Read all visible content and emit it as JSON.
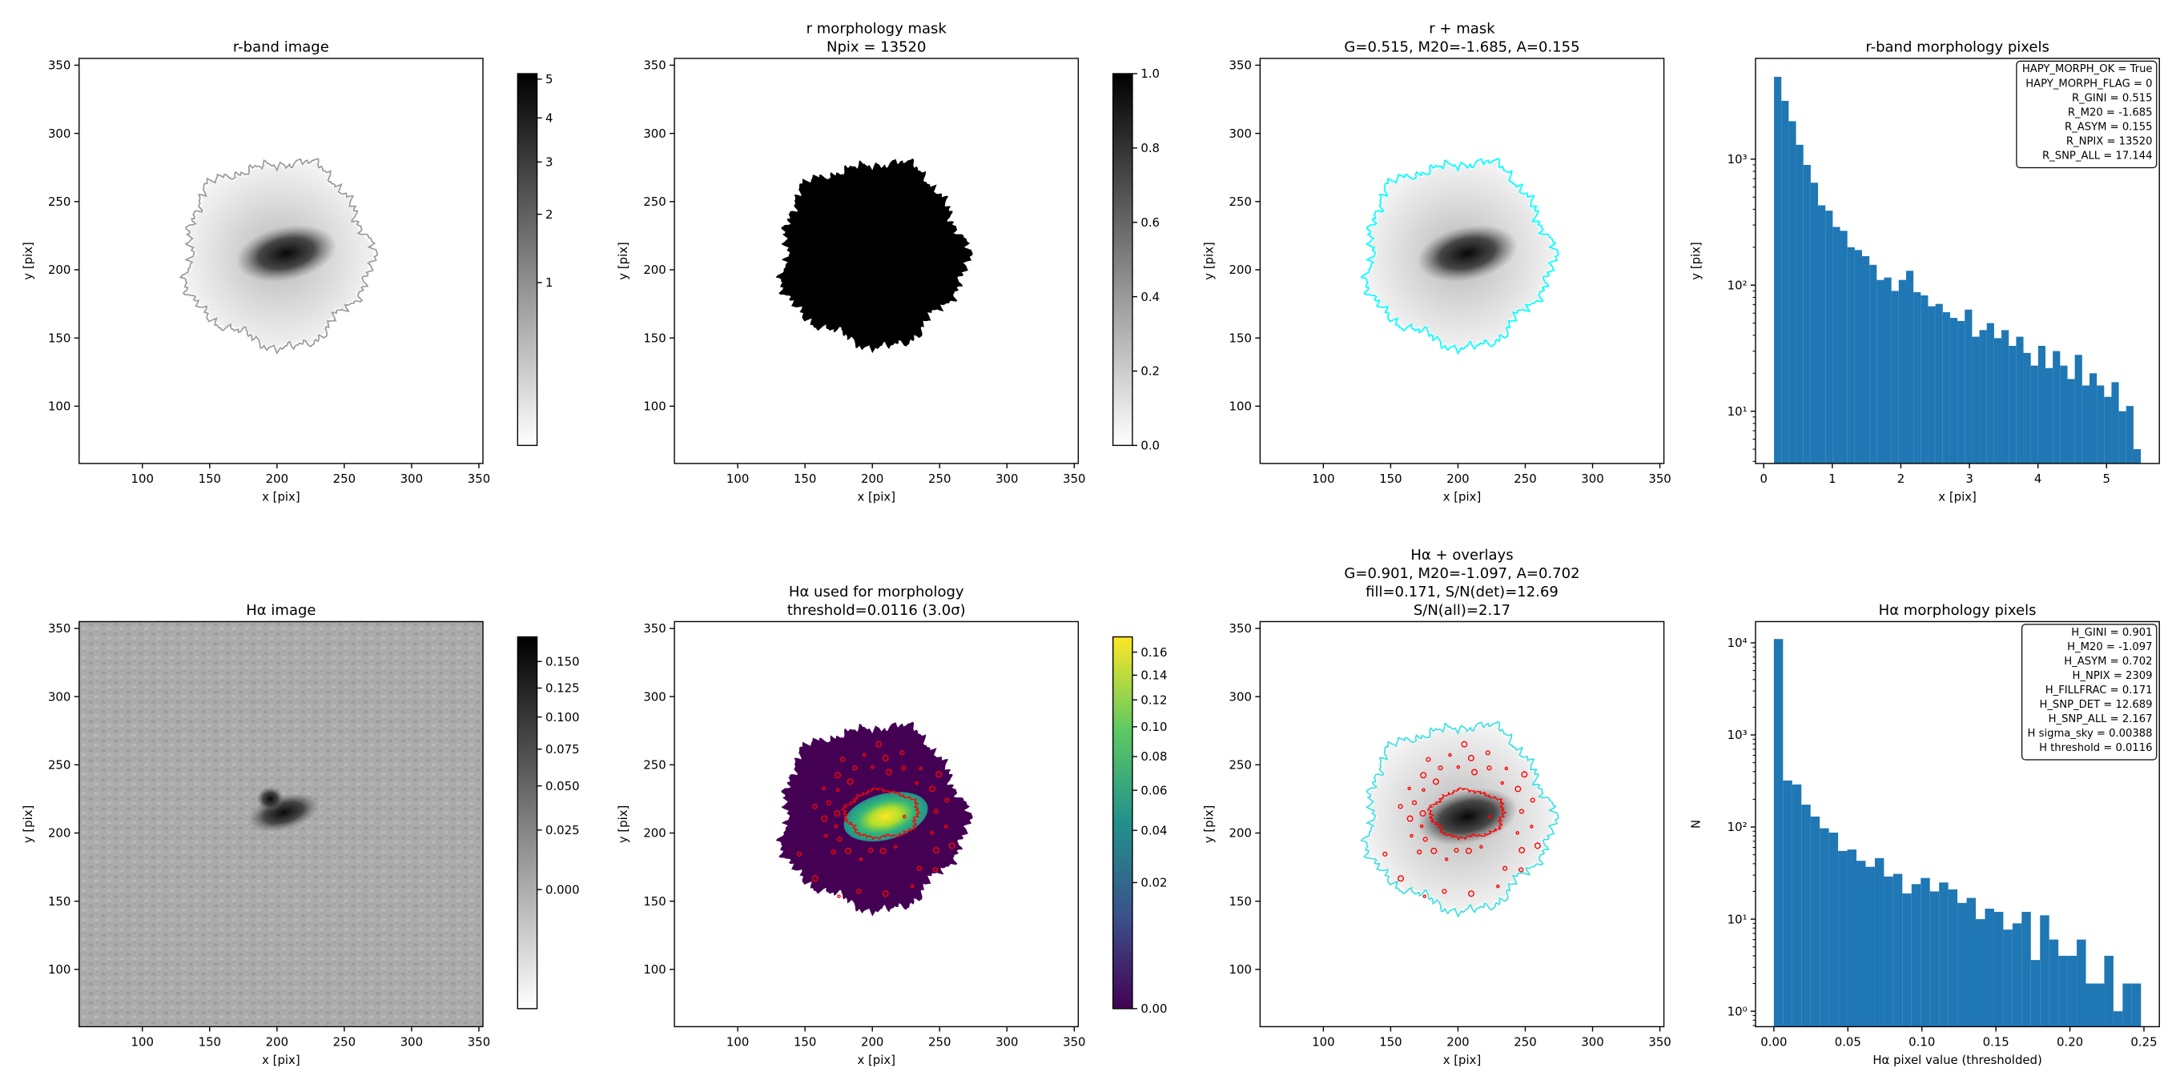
{
  "chart_data": [
    {
      "type": "image",
      "title": [
        "r-band image"
      ],
      "xlabel": "x [pix]",
      "ylabel": "y [pix]",
      "xlim": [
        53,
        353
      ],
      "ylim": [
        58,
        355
      ],
      "xticks": [
        100,
        150,
        200,
        250,
        300,
        350
      ],
      "yticks": [
        100,
        150,
        200,
        250,
        300,
        350
      ],
      "colormap": "gray_r",
      "contour_colors": [
        "#9a9a9a"
      ],
      "colorbar": {
        "scale": "sqrt",
        "clim": [
          0.015,
          5.15
        ],
        "ticks": [
          1,
          2,
          3,
          4,
          5
        ]
      }
    },
    {
      "type": "image",
      "title": [
        "r morphology mask",
        "Npix = 13520"
      ],
      "xlabel": "x [pix]",
      "ylabel": "y [pix]",
      "xlim": [
        53,
        353
      ],
      "ylim": [
        58,
        355
      ],
      "xticks": [
        100,
        150,
        200,
        250,
        300,
        350
      ],
      "yticks": [
        100,
        150,
        200,
        250,
        300,
        350
      ],
      "colormap": "gray_r",
      "contour_colors": [],
      "colorbar": {
        "scale": "linear",
        "clim": [
          0,
          1
        ],
        "ticks": [
          {
            "value": 0,
            "label": "0.0"
          },
          {
            "value": 0.2,
            "label": "0.2"
          },
          {
            "value": 0.4,
            "label": "0.4"
          },
          {
            "value": 0.6,
            "label": "0.6"
          },
          {
            "value": 0.8,
            "label": "0.8"
          },
          {
            "value": 1,
            "label": "1.0"
          }
        ]
      }
    },
    {
      "type": "image",
      "title": [
        "r + mask",
        "G=0.515, M20=-1.685, A=0.155"
      ],
      "xlabel": "x [pix]",
      "ylabel": "y [pix]",
      "xlim": [
        53,
        353
      ],
      "ylim": [
        58,
        355
      ],
      "xticks": [
        100,
        150,
        200,
        250,
        300,
        350
      ],
      "yticks": [
        100,
        150,
        200,
        250,
        300,
        350
      ],
      "colormap": "gray_r",
      "contour_colors": [
        "#00ffff"
      ]
    },
    {
      "type": "histogram",
      "title": [
        "r-band morphology pixels"
      ],
      "xlabel": "x [pix]",
      "ylabel": "y [pix]",
      "color": "#1f77b4",
      "ylog": true,
      "xlim": [
        -0.12,
        5.77
      ],
      "ylim": [
        3.85,
        6300
      ],
      "xticks": [
        0,
        1,
        2,
        3,
        4,
        5
      ],
      "yticks": [
        {
          "value": 10,
          "label": "10¹"
        },
        {
          "value": 100,
          "label": "10²"
        },
        {
          "value": 1000,
          "label": "10³"
        }
      ],
      "bins": [
        0.15,
        0.257,
        0.364,
        0.471,
        0.578,
        0.685,
        0.792,
        0.899,
        1.006,
        1.113,
        1.22,
        1.327,
        1.434,
        1.541,
        1.648,
        1.755,
        1.862,
        1.969,
        2.076,
        2.183,
        2.29,
        2.397,
        2.504,
        2.611,
        2.718,
        2.825,
        2.932,
        3.039,
        3.146,
        3.253,
        3.36,
        3.467,
        3.574,
        3.681,
        3.788,
        3.895,
        4.002,
        4.109,
        4.216,
        4.323,
        4.43,
        4.537,
        4.644,
        4.751,
        4.858,
        4.965,
        5.072,
        5.179,
        5.286,
        5.393,
        5.5
      ],
      "values": [
        4500,
        2900,
        2000,
        1300,
        900,
        650,
        430,
        390,
        290,
        270,
        200,
        190,
        170,
        145,
        110,
        115,
        90,
        110,
        130,
        88,
        83,
        68,
        71,
        61,
        55,
        52,
        64,
        39,
        44,
        50,
        38,
        44,
        33,
        39,
        29,
        23,
        33,
        22,
        30,
        23,
        18,
        28,
        16,
        20,
        16,
        13,
        17,
        10,
        11,
        5
      ],
      "annotations": [
        "HAPY_MORPH_OK = True",
        "HAPY_MORPH_FLAG = 0",
        "R_GINI = 0.515",
        "R_M20 = -1.685",
        "R_ASYM = 0.155",
        "R_NPIX = 13520",
        "R_SNP_ALL = 17.144"
      ]
    },
    {
      "type": "image",
      "title": [
        "Hα image"
      ],
      "xlabel": "x [pix]",
      "ylabel": "y [pix]",
      "xlim": [
        53,
        353
      ],
      "ylim": [
        58,
        355
      ],
      "xticks": [
        100,
        150,
        200,
        250,
        300,
        350
      ],
      "yticks": [
        100,
        150,
        200,
        250,
        300,
        350
      ],
      "colormap": "gray_r",
      "contour_colors": [],
      "colorbar": {
        "scale": "sqrt",
        "clim": [
          -0.02,
          0.175
        ],
        "ticks": [
          {
            "value": 0,
            "label": "0.000"
          },
          {
            "value": 0.025,
            "label": "0.025"
          },
          {
            "value": 0.05,
            "label": "0.050"
          },
          {
            "value": 0.075,
            "label": "0.075"
          },
          {
            "value": 0.1,
            "label": "0.100"
          },
          {
            "value": 0.125,
            "label": "0.125"
          },
          {
            "value": 0.15,
            "label": "0.150"
          }
        ]
      }
    },
    {
      "type": "image",
      "title": [
        "Hα used for morphology",
        "threshold=0.0116 (3.0σ)"
      ],
      "xlabel": "x [pix]",
      "ylabel": "y [pix]",
      "xlim": [
        53,
        353
      ],
      "ylim": [
        58,
        355
      ],
      "xticks": [
        100,
        150,
        200,
        250,
        300,
        350
      ],
      "yticks": [
        100,
        150,
        200,
        250,
        300,
        350
      ],
      "colormap": "viridis",
      "contour_colors": [
        "#ff0000"
      ],
      "colorbar": {
        "scale": "sqrt",
        "clim": [
          0,
          0.174
        ],
        "ticks": [
          {
            "value": 0,
            "label": "0.00"
          },
          {
            "value": 0.02,
            "label": "0.02"
          },
          {
            "value": 0.04,
            "label": "0.04"
          },
          {
            "value": 0.06,
            "label": "0.06"
          },
          {
            "value": 0.08,
            "label": "0.08"
          },
          {
            "value": 0.1,
            "label": "0.10"
          },
          {
            "value": 0.12,
            "label": "0.12"
          },
          {
            "value": 0.14,
            "label": "0.14"
          },
          {
            "value": 0.16,
            "label": "0.16"
          }
        ]
      }
    },
    {
      "type": "image",
      "title": [
        "Hα + overlays",
        "G=0.901, M20=-1.097, A=0.702",
        "fill=0.171, S/N(det)=12.69",
        "S/N(all)=2.17"
      ],
      "xlabel": "x [pix]",
      "ylabel": "y [pix]",
      "xlim": [
        53,
        353
      ],
      "ylim": [
        58,
        355
      ],
      "xticks": [
        100,
        150,
        200,
        250,
        300,
        350
      ],
      "yticks": [
        100,
        150,
        200,
        250,
        300,
        350
      ],
      "colormap": "gray_r",
      "contour_colors": [
        "#40e0e0",
        "#ff0000"
      ]
    },
    {
      "type": "histogram",
      "title": [
        "Hα morphology pixels"
      ],
      "xlabel": "Hα pixel value (thresholded)",
      "ylabel": "N",
      "color": "#1f77b4",
      "ylog": true,
      "xlim": [
        -0.0124,
        0.2604
      ],
      "ylim": [
        0.68,
        17000
      ],
      "xticks": [
        {
          "value": 0,
          "label": "0.00"
        },
        {
          "value": 0.05,
          "label": "0.05"
        },
        {
          "value": 0.1,
          "label": "0.10"
        },
        {
          "value": 0.15,
          "label": "0.15"
        },
        {
          "value": 0.2,
          "label": "0.20"
        },
        {
          "value": 0.25,
          "label": "0.25"
        }
      ],
      "yticks": [
        {
          "value": 1,
          "label": "10⁰"
        },
        {
          "value": 10,
          "label": "10¹"
        },
        {
          "value": 100,
          "label": "10²"
        },
        {
          "value": 1000,
          "label": "10³"
        },
        {
          "value": 10000,
          "label": "10⁴"
        }
      ],
      "bins": [
        0,
        0.0062,
        0.0124,
        0.0186,
        0.0248,
        0.031,
        0.0372,
        0.0434,
        0.0496,
        0.0558,
        0.062,
        0.0682,
        0.0744,
        0.0806,
        0.0868,
        0.093,
        0.0992,
        0.1054,
        0.1116,
        0.1178,
        0.124,
        0.1302,
        0.1364,
        0.1426,
        0.1488,
        0.155,
        0.1612,
        0.1674,
        0.1736,
        0.1798,
        0.186,
        0.1922,
        0.1984,
        0.2046,
        0.2108,
        0.217,
        0.2232,
        0.2294,
        0.2356,
        0.2418,
        0.248
      ],
      "values": [
        11000,
        320,
        290,
        175,
        130,
        97,
        87,
        55,
        57,
        43,
        37,
        46,
        29,
        31,
        19,
        24,
        28,
        20,
        25,
        21,
        15,
        17,
        10,
        13,
        12,
        7.7,
        9,
        12,
        3.6,
        11,
        6,
        4,
        4,
        6,
        2,
        2,
        4,
        1,
        2,
        2
      ],
      "annotations": [
        "H_GINI = 0.901",
        "H_M20 = -1.097",
        "H_ASYM = 0.702",
        "H_NPIX = 2309",
        "H_FILLFRAC = 0.171",
        "H_SNP_DET = 12.689",
        "H_SNP_ALL = 2.167",
        "H sigma_sky = 0.00388",
        "H threshold = 0.0116"
      ]
    }
  ]
}
